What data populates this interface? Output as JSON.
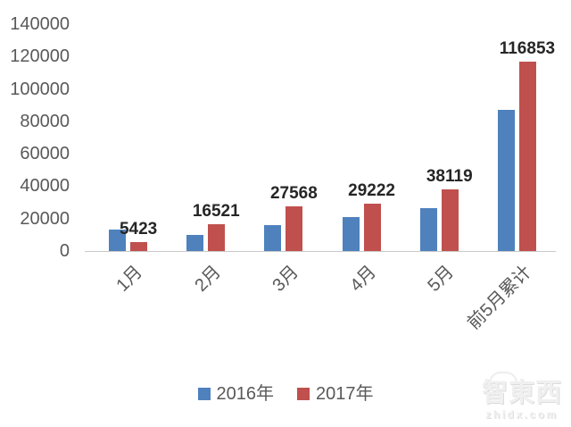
{
  "chart_data": {
    "type": "bar",
    "title": "",
    "xlabel": "",
    "ylabel": "",
    "categories": [
      "1月",
      "2月",
      "3月",
      "4月",
      "5月",
      "前5月累计"
    ],
    "series": [
      {
        "name": "2016年",
        "color": "#4F81BD",
        "values": [
          13500,
          10200,
          15800,
          20900,
          26500,
          86900
        ]
      },
      {
        "name": "2017年",
        "color": "#C0504D",
        "values": [
          5423,
          16521,
          27568,
          29222,
          38119,
          116853
        ]
      }
    ],
    "data_labels": [
      "5423",
      "16521",
      "27568",
      "29222",
      "38119",
      "116853"
    ],
    "data_labels_series": "2017年",
    "ylim": [
      0,
      140000
    ],
    "yticks": [
      0,
      20000,
      40000,
      60000,
      80000,
      100000,
      120000,
      140000
    ],
    "ytick_labels": [
      "0",
      "20000",
      "40000",
      "60000",
      "80000",
      "100000",
      "120000",
      "140000"
    ],
    "grid": false,
    "legend_position": "bottom",
    "x_tick_rotation_deg": -45
  },
  "colors": {
    "axis_line": "#C9C9C9",
    "tick_label": "#595959",
    "data_label": "#262626",
    "background": "#FFFFFF"
  },
  "watermark": {
    "logo_text": "智東西",
    "domain": "zhidx.com"
  }
}
